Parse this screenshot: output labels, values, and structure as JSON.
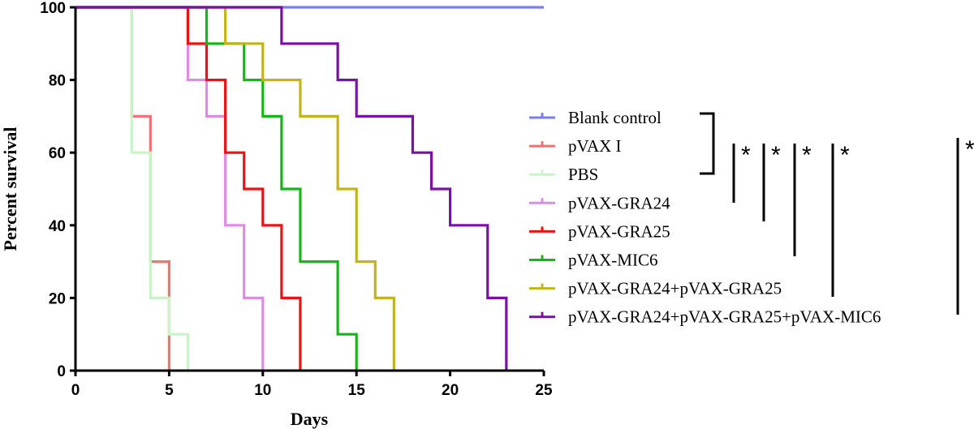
{
  "chart_data": {
    "type": "line",
    "step": true,
    "xlabel": "Days",
    "ylabel": "Percent survival",
    "xlim": [
      0,
      25
    ],
    "ylim": [
      0,
      100
    ],
    "x_ticks": [
      0,
      5,
      10,
      15,
      20,
      25
    ],
    "y_ticks": [
      0,
      20,
      40,
      60,
      80,
      100
    ],
    "grid": false,
    "legend_position": "right",
    "series": [
      {
        "name": "Blank control",
        "color": "#7b7bff",
        "x": [
          0,
          25
        ],
        "y": [
          100,
          100
        ]
      },
      {
        "name": "pVAX I",
        "color": "#f57070",
        "x": [
          0,
          3,
          4,
          5
        ],
        "y": [
          100,
          70,
          30,
          0
        ]
      },
      {
        "name": "PBS",
        "color": "#c8f5c8",
        "x": [
          0,
          3,
          4,
          5,
          6
        ],
        "y": [
          100,
          60,
          20,
          10,
          0
        ]
      },
      {
        "name": "pVAX-GRA24",
        "color": "#e08ae8",
        "x": [
          0,
          6,
          7,
          8,
          9,
          10
        ],
        "y": [
          100,
          80,
          70,
          40,
          20,
          0
        ]
      },
      {
        "name": "pVAX-GRA25",
        "color": "#ee1111",
        "x": [
          0,
          6,
          7,
          8,
          9,
          10,
          11,
          12
        ],
        "y": [
          100,
          90,
          80,
          60,
          50,
          40,
          20,
          0
        ]
      },
      {
        "name": "pVAX-MIC6",
        "color": "#14b814",
        "x": [
          0,
          7,
          9,
          10,
          11,
          12,
          14,
          15
        ],
        "y": [
          100,
          90,
          80,
          70,
          50,
          30,
          10,
          0
        ]
      },
      {
        "name": "pVAX-GRA24+pVAX-GRA25",
        "color": "#c3b418",
        "x": [
          0,
          8,
          10,
          12,
          14,
          15,
          16,
          17
        ],
        "y": [
          100,
          90,
          80,
          70,
          50,
          30,
          20,
          0
        ]
      },
      {
        "name": "pVAX-GRA24+pVAX-GRA25+pVAX-MIC6",
        "color": "#7a10a8",
        "x": [
          0,
          11,
          14,
          15,
          18,
          19,
          20,
          22,
          23
        ],
        "y": [
          100,
          90,
          80,
          70,
          60,
          50,
          40,
          20,
          0
        ]
      }
    ],
    "significance": [
      {
        "comparison": "pVAX-GRA24",
        "label": "*"
      },
      {
        "comparison": "pVAX-GRA25",
        "label": "*"
      },
      {
        "comparison": "pVAX-MIC6",
        "label": "*"
      },
      {
        "comparison": "pVAX-GRA24+pVAX-GRA25",
        "label": "*"
      },
      {
        "comparison": "pVAX-GRA24+pVAX-GRA25+pVAX-MIC6",
        "label": "*"
      }
    ]
  }
}
